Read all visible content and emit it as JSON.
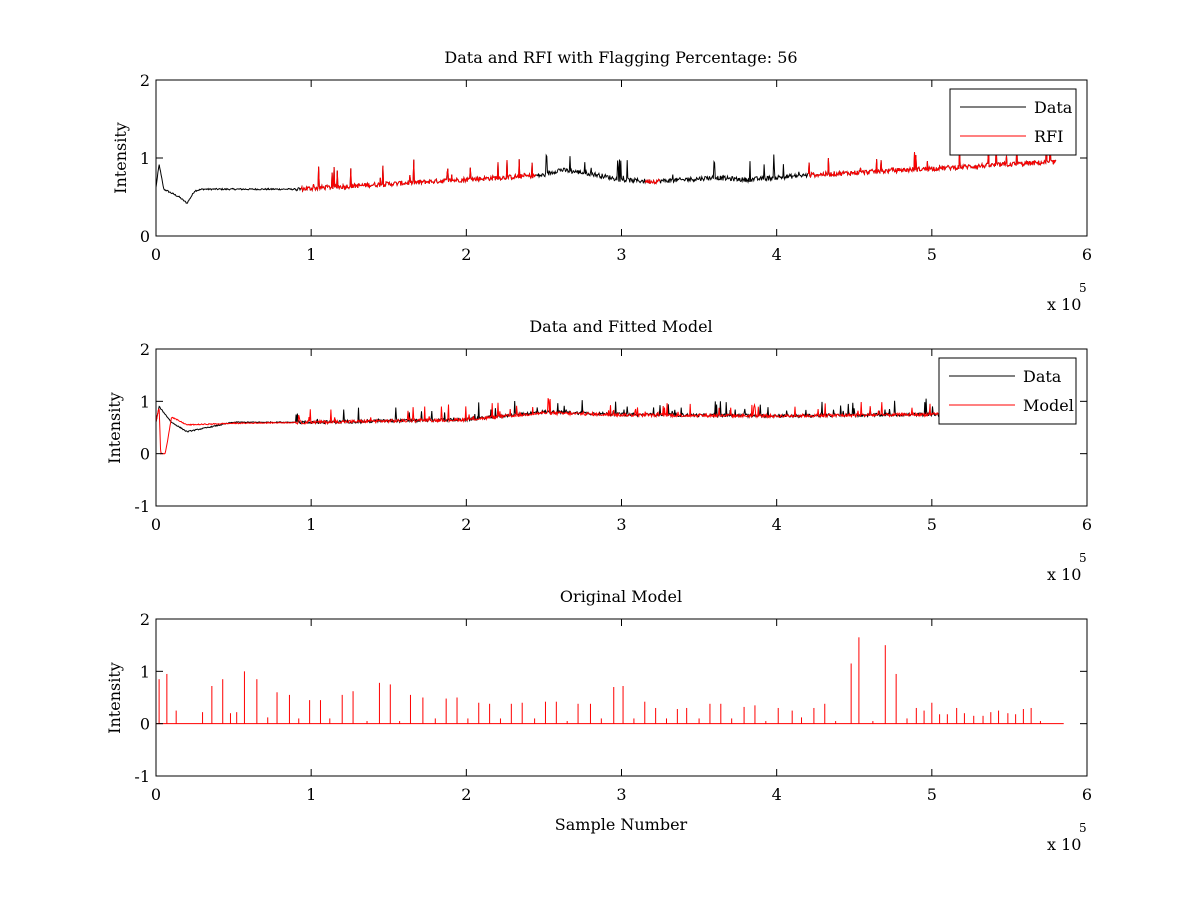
{
  "charts": [
    {
      "id": "p1",
      "type": "line",
      "title": "Data and RFI with Flagging Percentage: 56",
      "xlabel": "",
      "ylabel": "Intensity",
      "xlim": [
        0,
        6
      ],
      "ylim": [
        0,
        2
      ],
      "xticks": [
        "0",
        "1",
        "2",
        "3",
        "4",
        "5",
        "6"
      ],
      "yticks": [
        "0",
        "1",
        "2"
      ],
      "exponent_base": "x 10",
      "exponent_power": "5",
      "legend": {
        "position": "top-right",
        "entries": [
          {
            "label": "Data",
            "color": "#000000"
          },
          {
            "label": "RFI",
            "color": "#ff0000"
          }
        ]
      },
      "series": [
        {
          "name": "Data",
          "color": "#000000",
          "x": [
            0,
            0.02,
            0.05,
            0.1,
            0.15,
            0.2,
            0.25,
            0.3,
            0.5,
            0.9,
            2.5,
            2.6,
            2.8,
            3.0,
            3.2,
            3.4,
            3.6,
            3.8,
            4.0,
            4.2,
            5.8
          ],
          "y": [
            0.62,
            0.92,
            0.6,
            0.55,
            0.5,
            0.42,
            0.58,
            0.6,
            0.6,
            0.6,
            0.78,
            0.85,
            0.8,
            0.72,
            0.7,
            0.72,
            0.75,
            0.72,
            0.75,
            0.78,
            0.95
          ]
        },
        {
          "name": "RFI",
          "color": "#ff0000",
          "segments": [
            [
              0.93,
              2.45
            ],
            [
              3.15,
              3.25
            ],
            [
              4.2,
              5.85
            ]
          ]
        }
      ]
    },
    {
      "id": "p2",
      "type": "line",
      "title": "Data and Fitted Model",
      "xlabel": "",
      "ylabel": "Intensity",
      "xlim": [
        0,
        6
      ],
      "ylim": [
        -1,
        2
      ],
      "xticks": [
        "0",
        "1",
        "2",
        "3",
        "4",
        "5",
        "6"
      ],
      "yticks": [
        "-1",
        "0",
        "1",
        "2"
      ],
      "exponent_base": "x 10",
      "exponent_power": "5",
      "legend": {
        "position": "top-right",
        "entries": [
          {
            "label": "Data",
            "color": "#000000"
          },
          {
            "label": "Model",
            "color": "#ff0000"
          }
        ]
      },
      "series": [
        {
          "name": "Data",
          "color": "#000000",
          "x": [
            0,
            0.02,
            0.1,
            0.2,
            0.5,
            1.0,
            2.0,
            2.5,
            3.0,
            4.0,
            5.0,
            5.8
          ],
          "y": [
            0.6,
            0.9,
            0.6,
            0.42,
            0.6,
            0.6,
            0.65,
            0.8,
            0.75,
            0.72,
            0.75,
            0.78
          ]
        },
        {
          "name": "Model",
          "color": "#ff0000",
          "x": [
            0,
            0.02,
            0.03,
            0.06,
            0.1,
            0.2,
            0.5,
            1.0,
            2.0,
            2.5,
            3.0,
            4.0,
            5.0,
            5.8
          ],
          "y": [
            0.6,
            0.9,
            0.0,
            0.0,
            0.7,
            0.55,
            0.58,
            0.6,
            0.65,
            0.78,
            0.74,
            0.72,
            0.75,
            0.78
          ]
        }
      ]
    },
    {
      "id": "p3",
      "type": "line",
      "title": "Original Model",
      "xlabel": "Sample Number",
      "ylabel": "Intensity",
      "xlim": [
        0,
        6
      ],
      "ylim": [
        -1,
        2
      ],
      "xticks": [
        "0",
        "1",
        "2",
        "3",
        "4",
        "5",
        "6"
      ],
      "yticks": [
        "-1",
        "0",
        "1",
        "2"
      ],
      "exponent_base": "x 10",
      "exponent_power": "5",
      "series": [
        {
          "name": "Original Model",
          "color": "#ff0000",
          "baseline": 0.0,
          "x_end": 5.85,
          "spikes": [
            [
              0.02,
              0.85
            ],
            [
              0.07,
              0.95
            ],
            [
              0.13,
              0.25
            ],
            [
              0.3,
              0.22
            ],
            [
              0.36,
              0.72
            ],
            [
              0.43,
              0.85
            ],
            [
              0.48,
              0.2
            ],
            [
              0.52,
              0.22
            ],
            [
              0.57,
              1.0
            ],
            [
              0.65,
              0.85
            ],
            [
              0.72,
              0.12
            ],
            [
              0.78,
              0.6
            ],
            [
              0.86,
              0.55
            ],
            [
              0.92,
              0.1
            ],
            [
              0.99,
              0.45
            ],
            [
              1.06,
              0.45
            ],
            [
              1.12,
              0.1
            ],
            [
              1.2,
              0.55
            ],
            [
              1.27,
              0.62
            ],
            [
              1.36,
              0.05
            ],
            [
              1.44,
              0.78
            ],
            [
              1.51,
              0.75
            ],
            [
              1.57,
              0.05
            ],
            [
              1.64,
              0.55
            ],
            [
              1.72,
              0.5
            ],
            [
              1.8,
              0.1
            ],
            [
              1.87,
              0.48
            ],
            [
              1.94,
              0.5
            ],
            [
              2.01,
              0.1
            ],
            [
              2.08,
              0.4
            ],
            [
              2.15,
              0.38
            ],
            [
              2.22,
              0.1
            ],
            [
              2.29,
              0.38
            ],
            [
              2.36,
              0.4
            ],
            [
              2.44,
              0.1
            ],
            [
              2.51,
              0.42
            ],
            [
              2.58,
              0.42
            ],
            [
              2.65,
              0.05
            ],
            [
              2.72,
              0.38
            ],
            [
              2.8,
              0.38
            ],
            [
              2.87,
              0.1
            ],
            [
              2.95,
              0.7
            ],
            [
              3.01,
              0.72
            ],
            [
              3.08,
              0.1
            ],
            [
              3.15,
              0.42
            ],
            [
              3.22,
              0.3
            ],
            [
              3.29,
              0.1
            ],
            [
              3.36,
              0.28
            ],
            [
              3.42,
              0.3
            ],
            [
              3.5,
              0.1
            ],
            [
              3.57,
              0.38
            ],
            [
              3.64,
              0.38
            ],
            [
              3.71,
              0.1
            ],
            [
              3.79,
              0.32
            ],
            [
              3.86,
              0.35
            ],
            [
              3.93,
              0.05
            ],
            [
              4.01,
              0.3
            ],
            [
              4.1,
              0.25
            ],
            [
              4.16,
              0.12
            ],
            [
              4.24,
              0.3
            ],
            [
              4.31,
              0.38
            ],
            [
              4.38,
              0.05
            ],
            [
              4.48,
              1.15
            ],
            [
              4.53,
              1.65
            ],
            [
              4.62,
              0.05
            ],
            [
              4.7,
              1.5
            ],
            [
              4.77,
              0.95
            ],
            [
              4.84,
              0.1
            ],
            [
              4.9,
              0.3
            ],
            [
              4.95,
              0.25
            ],
            [
              5.0,
              0.4
            ],
            [
              5.05,
              0.18
            ],
            [
              5.1,
              0.18
            ],
            [
              5.16,
              0.3
            ],
            [
              5.21,
              0.2
            ],
            [
              5.27,
              0.15
            ],
            [
              5.33,
              0.15
            ],
            [
              5.38,
              0.22
            ],
            [
              5.43,
              0.25
            ],
            [
              5.49,
              0.2
            ],
            [
              5.54,
              0.18
            ],
            [
              5.59,
              0.28
            ],
            [
              5.64,
              0.3
            ],
            [
              5.7,
              0.05
            ]
          ]
        }
      ]
    }
  ]
}
